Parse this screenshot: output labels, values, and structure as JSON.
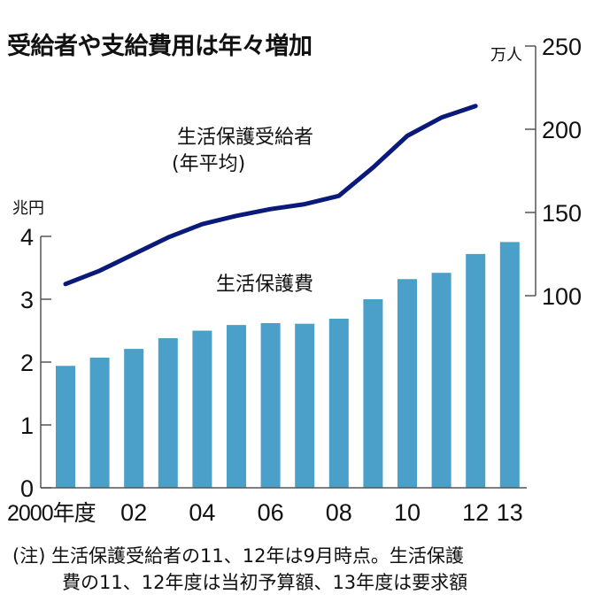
{
  "title": "受給者や支給費用は年々増加",
  "note": {
    "line1": "(注) 生活保護受給者の11、12年は9月時点。生活保護",
    "line2": "費の11、12年度は当初予算額、13年度は要求額"
  },
  "colors": {
    "bar": "#4aa0c8",
    "line": "#0a1a7a",
    "axis": "#555555"
  },
  "chart_data": {
    "type": "bar+line",
    "title": "受給者や支給費用は年々増加",
    "categories": [
      "2000",
      "2001",
      "2002",
      "2003",
      "2004",
      "2005",
      "2006",
      "2007",
      "2008",
      "2009",
      "2010",
      "2011",
      "2012",
      "2013"
    ],
    "x_tick_labels": [
      {
        "index": 0,
        "label": "2000年度"
      },
      {
        "index": 2,
        "label": "02"
      },
      {
        "index": 4,
        "label": "04"
      },
      {
        "index": 6,
        "label": "06"
      },
      {
        "index": 8,
        "label": "08"
      },
      {
        "index": 10,
        "label": "10"
      },
      {
        "index": 12,
        "label": "12"
      },
      {
        "index": 13,
        "label": "13"
      }
    ],
    "left_axis": {
      "unit": "兆円",
      "ylim": [
        0,
        4
      ],
      "ticks": [
        "0",
        "1",
        "2",
        "3",
        "4"
      ]
    },
    "right_axis": {
      "unit": "万人",
      "ylim": [
        100,
        250
      ],
      "ticks": [
        "100",
        "150",
        "200",
        "250"
      ]
    },
    "series": [
      {
        "name": "生活保護費",
        "type": "bar",
        "axis": "left",
        "values": [
          1.94,
          2.07,
          2.21,
          2.38,
          2.5,
          2.59,
          2.62,
          2.61,
          2.69,
          3.0,
          3.32,
          3.42,
          3.72,
          3.91
        ]
      },
      {
        "name": "生活保護受給者",
        "name_line2": "(年平均)",
        "type": "line",
        "axis": "right",
        "values": [
          107,
          115,
          125,
          135,
          143,
          148,
          152,
          155,
          160,
          177,
          196,
          207,
          214,
          null
        ]
      }
    ]
  }
}
